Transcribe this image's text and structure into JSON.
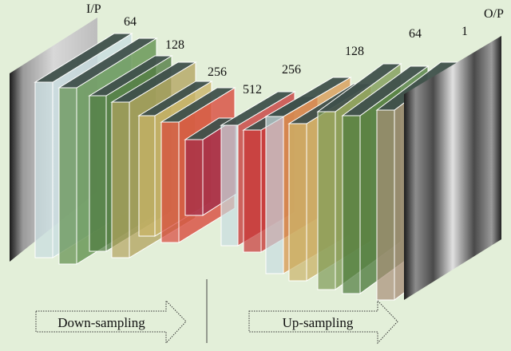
{
  "labels": {
    "input": "I/P",
    "output": "O/P",
    "down": [
      "64",
      "128",
      "256",
      "512"
    ],
    "up": [
      "256",
      "128",
      "64",
      "1"
    ]
  },
  "arrows": {
    "down": "Down-sampling",
    "up": "Up-sampling"
  },
  "colors": {
    "background": "#e3efd9",
    "top_face": "#3f504b",
    "slabs": [
      "#c8dde0",
      "#5f8f4c",
      "#4f7a40",
      "#b3a460",
      "#c9b366",
      "#d9463a",
      "#a02a48",
      "#c63a3a",
      "#c83636",
      "#d99a55",
      "#cbb36a",
      "#7d9a55",
      "#4d7a3c",
      "#a88e78"
    ]
  }
}
